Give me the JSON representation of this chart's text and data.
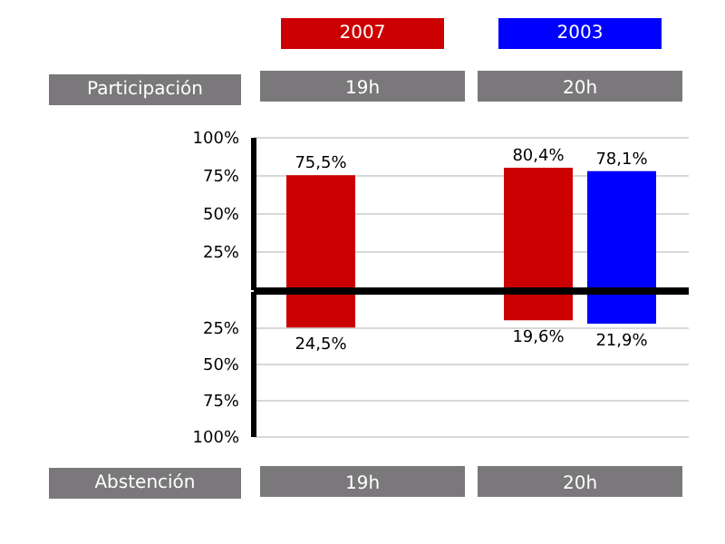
{
  "chart_data": [
    {
      "type": "bar",
      "categories": [
        "19h",
        "20h"
      ],
      "series": [
        {
          "name": "2007",
          "color": "#cc0000",
          "values": [
            75.5,
            80.4
          ],
          "value_labels": [
            "75,5%",
            "80,4%"
          ]
        },
        {
          "name": "2003",
          "color": "#0000ff",
          "values": [
            null,
            78.1
          ],
          "value_labels": [
            null,
            "78,1%"
          ]
        }
      ],
      "ylim": [
        0,
        100
      ],
      "yticks": [
        {
          "value": 25,
          "label": "25%"
        },
        {
          "value": 50,
          "label": "50%"
        },
        {
          "value": 75,
          "label": "75%"
        },
        {
          "value": 100,
          "label": "100%"
        }
      ],
      "annotations": [
        "Participación"
      ],
      "grid": "y",
      "legend": "top"
    },
    {
      "type": "bar",
      "categories": [
        "19h",
        "20h"
      ],
      "series": [
        {
          "color": "#cc0000",
          "values": [
            24.5,
            19.6
          ],
          "value_labels": [
            "24,5%",
            "19,6%"
          ]
        },
        {
          "color": "#0000ff",
          "values": [
            null,
            21.9
          ],
          "value_labels": [
            null,
            "21,9%"
          ]
        }
      ],
      "ylim": [
        100,
        0
      ],
      "yticks": [
        {
          "value": 25,
          "label": "25%"
        },
        {
          "value": 50,
          "label": "50%"
        },
        {
          "value": 75,
          "label": "75%"
        },
        {
          "value": 100,
          "label": "100%"
        }
      ],
      "annotations": [
        "Abstención"
      ],
      "grid": "y"
    }
  ]
}
